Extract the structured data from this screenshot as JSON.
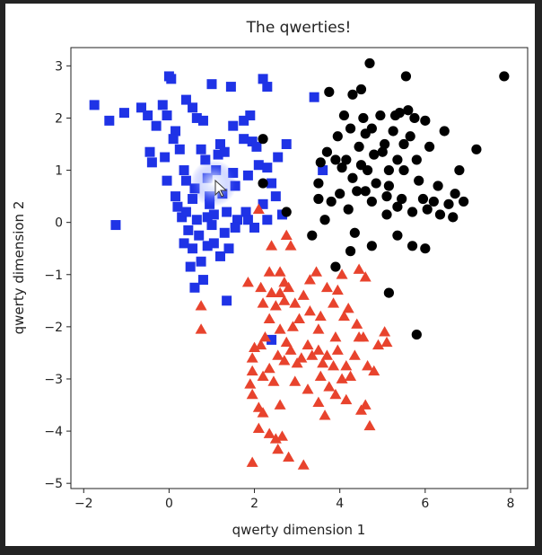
{
  "chart_data": {
    "type": "scatter",
    "title": "The qwerties!",
    "xlabel": "qwerty dimension 1",
    "ylabel": "qwerty dimension 2",
    "xlim": [
      -2.3,
      8.4
    ],
    "ylim": [
      -5.1,
      3.35
    ],
    "xticks": [
      -2,
      0,
      2,
      4,
      6,
      8
    ],
    "yticks": [
      3,
      2,
      1,
      0,
      -1,
      -2,
      -3,
      -4,
      -5
    ],
    "xtick_labels": [
      "−2",
      "0",
      "2",
      "4",
      "6",
      "8"
    ],
    "ytick_labels": [
      "3",
      "2",
      "1",
      "0",
      "−1",
      "−2",
      "−3",
      "−4",
      "−5"
    ],
    "grid": false,
    "series": [
      {
        "marker": "square",
        "color": "#1f33e6",
        "points": [
          [
            -1.75,
            2.25
          ],
          [
            -1.4,
            1.95
          ],
          [
            -1.05,
            2.1
          ],
          [
            -1.25,
            -0.05
          ],
          [
            -0.65,
            2.2
          ],
          [
            -0.5,
            2.05
          ],
          [
            -0.45,
            1.35
          ],
          [
            -0.4,
            1.15
          ],
          [
            -0.3,
            1.85
          ],
          [
            -0.15,
            2.25
          ],
          [
            -0.05,
            2.05
          ],
          [
            0.0,
            2.8
          ],
          [
            0.05,
            2.75
          ],
          [
            0.15,
            1.75
          ],
          [
            0.1,
            1.6
          ],
          [
            -0.1,
            1.25
          ],
          [
            -0.05,
            0.8
          ],
          [
            0.15,
            0.5
          ],
          [
            0.2,
            0.3
          ],
          [
            0.3,
            0.1
          ],
          [
            0.25,
            1.4
          ],
          [
            0.35,
            1.0
          ],
          [
            0.4,
            0.8
          ],
          [
            0.4,
            0.2
          ],
          [
            0.45,
            -0.15
          ],
          [
            0.35,
            -0.4
          ],
          [
            0.55,
            0.45
          ],
          [
            0.6,
            0.65
          ],
          [
            0.65,
            0.05
          ],
          [
            0.55,
            -0.5
          ],
          [
            0.5,
            -0.85
          ],
          [
            0.7,
            -0.25
          ],
          [
            0.75,
            -0.75
          ],
          [
            0.8,
            -1.1
          ],
          [
            0.6,
            -1.25
          ],
          [
            0.4,
            2.35
          ],
          [
            0.55,
            2.2
          ],
          [
            0.65,
            2.0
          ],
          [
            0.8,
            1.95
          ],
          [
            0.75,
            1.4
          ],
          [
            0.85,
            1.2
          ],
          [
            0.9,
            0.85
          ],
          [
            0.95,
            0.5
          ],
          [
            0.95,
            0.35
          ],
          [
            0.9,
            0.1
          ],
          [
            1.0,
            -0.05
          ],
          [
            1.05,
            0.15
          ],
          [
            1.1,
            1.0
          ],
          [
            1.15,
            1.3
          ],
          [
            1.2,
            1.5
          ],
          [
            1.3,
            1.35
          ],
          [
            1.25,
            0.55
          ],
          [
            1.35,
            0.2
          ],
          [
            1.3,
            -0.2
          ],
          [
            1.4,
            -0.5
          ],
          [
            1.2,
            -0.65
          ],
          [
            1.05,
            -0.4
          ],
          [
            0.9,
            -0.45
          ],
          [
            1.0,
            2.65
          ],
          [
            1.45,
            2.6
          ],
          [
            1.5,
            1.85
          ],
          [
            1.5,
            0.95
          ],
          [
            1.55,
            0.7
          ],
          [
            1.6,
            0.05
          ],
          [
            1.55,
            -0.1
          ],
          [
            1.35,
            -1.5
          ],
          [
            1.75,
            1.95
          ],
          [
            1.9,
            2.05
          ],
          [
            1.75,
            1.6
          ],
          [
            1.95,
            1.55
          ],
          [
            1.85,
            0.9
          ],
          [
            1.8,
            0.2
          ],
          [
            1.85,
            0.05
          ],
          [
            2.0,
            -0.1
          ],
          [
            2.05,
            1.45
          ],
          [
            2.2,
            2.75
          ],
          [
            2.3,
            2.6
          ],
          [
            2.1,
            1.1
          ],
          [
            2.3,
            1.05
          ],
          [
            2.2,
            0.35
          ],
          [
            2.3,
            0.05
          ],
          [
            2.4,
            0.75
          ],
          [
            2.5,
            0.5
          ],
          [
            2.55,
            1.25
          ],
          [
            2.75,
            1.5
          ],
          [
            2.65,
            0.15
          ],
          [
            3.4,
            2.4
          ],
          [
            3.6,
            1.0
          ],
          [
            2.4,
            -2.25
          ]
        ]
      },
      {
        "marker": "circle",
        "color": "#000000",
        "points": [
          [
            2.2,
            1.6
          ],
          [
            2.2,
            0.75
          ],
          [
            2.75,
            0.2
          ],
          [
            3.35,
            -0.25
          ],
          [
            3.5,
            0.45
          ],
          [
            3.55,
            1.15
          ],
          [
            3.5,
            0.75
          ],
          [
            3.7,
            1.35
          ],
          [
            3.75,
            2.5
          ],
          [
            3.8,
            0.4
          ],
          [
            3.65,
            0.05
          ],
          [
            3.9,
            1.2
          ],
          [
            3.95,
            1.65
          ],
          [
            4.05,
            1.05
          ],
          [
            4.0,
            0.55
          ],
          [
            4.1,
            2.05
          ],
          [
            4.25,
            1.8
          ],
          [
            4.3,
            0.85
          ],
          [
            4.2,
            0.25
          ],
          [
            4.35,
            -0.2
          ],
          [
            4.4,
            0.6
          ],
          [
            4.45,
            1.45
          ],
          [
            4.5,
            2.55
          ],
          [
            4.3,
            2.45
          ],
          [
            4.55,
            2.0
          ],
          [
            4.6,
            1.7
          ],
          [
            4.65,
            1.0
          ],
          [
            4.6,
            0.6
          ],
          [
            4.7,
            3.05
          ],
          [
            4.75,
            1.8
          ],
          [
            4.75,
            0.4
          ],
          [
            4.85,
            0.75
          ],
          [
            4.8,
            1.3
          ],
          [
            4.95,
            2.05
          ],
          [
            5.05,
            1.5
          ],
          [
            5.1,
            0.5
          ],
          [
            5.15,
            1.0
          ],
          [
            5.1,
            0.15
          ],
          [
            5.25,
            1.75
          ],
          [
            5.3,
            2.05
          ],
          [
            5.35,
            1.2
          ],
          [
            5.35,
            0.3
          ],
          [
            5.45,
            0.45
          ],
          [
            5.5,
            1.5
          ],
          [
            5.5,
            1.0
          ],
          [
            5.55,
            2.8
          ],
          [
            5.6,
            2.15
          ],
          [
            5.65,
            1.65
          ],
          [
            5.7,
            0.2
          ],
          [
            5.75,
            2.0
          ],
          [
            5.8,
            1.2
          ],
          [
            5.85,
            0.8
          ],
          [
            5.95,
            0.45
          ],
          [
            6.0,
            1.95
          ],
          [
            6.05,
            0.25
          ],
          [
            6.1,
            1.45
          ],
          [
            6.2,
            0.4
          ],
          [
            6.3,
            0.7
          ],
          [
            6.35,
            0.15
          ],
          [
            6.45,
            1.75
          ],
          [
            6.55,
            0.35
          ],
          [
            6.65,
            0.1
          ],
          [
            6.7,
            0.55
          ],
          [
            6.8,
            1.0
          ],
          [
            5.7,
            -0.45
          ],
          [
            5.35,
            -0.25
          ],
          [
            6.0,
            -0.5
          ],
          [
            4.25,
            -0.55
          ],
          [
            4.75,
            -0.45
          ],
          [
            3.9,
            -0.85
          ],
          [
            5.15,
            -1.35
          ],
          [
            5.8,
            -2.15
          ],
          [
            6.9,
            0.4
          ],
          [
            7.2,
            1.4
          ],
          [
            7.85,
            2.8
          ],
          [
            5.4,
            2.1
          ],
          [
            5.0,
            1.35
          ],
          [
            4.5,
            1.1
          ],
          [
            4.15,
            1.2
          ],
          [
            5.15,
            0.7
          ]
        ]
      },
      {
        "marker": "triangle",
        "color": "#e8432d",
        "points": [
          [
            2.1,
            0.25
          ],
          [
            2.75,
            -0.25
          ],
          [
            2.85,
            -0.45
          ],
          [
            2.4,
            -0.45
          ],
          [
            1.85,
            -1.15
          ],
          [
            2.35,
            -0.95
          ],
          [
            2.6,
            -0.95
          ],
          [
            2.15,
            -1.25
          ],
          [
            2.4,
            -1.35
          ],
          [
            2.6,
            -1.35
          ],
          [
            2.8,
            -1.25
          ],
          [
            2.7,
            -1.15
          ],
          [
            2.2,
            -1.55
          ],
          [
            2.5,
            -1.6
          ],
          [
            2.7,
            -1.5
          ],
          [
            2.95,
            -1.55
          ],
          [
            3.15,
            -1.4
          ],
          [
            3.45,
            -0.95
          ],
          [
            3.7,
            -1.25
          ],
          [
            3.95,
            -1.3
          ],
          [
            4.05,
            -1.0
          ],
          [
            4.45,
            -0.9
          ],
          [
            4.6,
            -1.05
          ],
          [
            4.2,
            -1.65
          ],
          [
            4.1,
            -1.8
          ],
          [
            3.9,
            -2.2
          ],
          [
            3.55,
            -1.8
          ],
          [
            3.3,
            -1.7
          ],
          [
            3.05,
            -1.85
          ],
          [
            2.9,
            -2.0
          ],
          [
            2.6,
            -2.05
          ],
          [
            2.35,
            -1.85
          ],
          [
            2.25,
            -2.2
          ],
          [
            2.15,
            -2.35
          ],
          [
            2.0,
            -2.4
          ],
          [
            1.95,
            -2.6
          ],
          [
            1.95,
            -2.85
          ],
          [
            1.9,
            -3.1
          ],
          [
            1.95,
            -3.3
          ],
          [
            2.1,
            -3.55
          ],
          [
            2.2,
            -2.95
          ],
          [
            2.35,
            -2.8
          ],
          [
            2.45,
            -3.05
          ],
          [
            2.55,
            -2.55
          ],
          [
            2.7,
            -2.65
          ],
          [
            2.85,
            -2.45
          ],
          [
            3.0,
            -2.7
          ],
          [
            3.1,
            -2.6
          ],
          [
            3.25,
            -2.35
          ],
          [
            3.35,
            -2.55
          ],
          [
            3.5,
            -2.45
          ],
          [
            3.6,
            -2.7
          ],
          [
            3.7,
            -2.55
          ],
          [
            3.85,
            -2.75
          ],
          [
            3.95,
            -2.45
          ],
          [
            4.05,
            -3.0
          ],
          [
            4.15,
            -2.75
          ],
          [
            4.25,
            -2.95
          ],
          [
            4.35,
            -2.55
          ],
          [
            4.45,
            -2.2
          ],
          [
            4.55,
            -2.2
          ],
          [
            4.65,
            -2.75
          ],
          [
            4.8,
            -2.85
          ],
          [
            4.9,
            -2.35
          ],
          [
            5.05,
            -2.1
          ],
          [
            5.1,
            -2.3
          ],
          [
            3.55,
            -2.95
          ],
          [
            3.75,
            -3.15
          ],
          [
            3.5,
            -3.45
          ],
          [
            3.65,
            -3.7
          ],
          [
            3.9,
            -3.3
          ],
          [
            4.15,
            -3.4
          ],
          [
            4.5,
            -3.6
          ],
          [
            4.6,
            -3.5
          ],
          [
            4.7,
            -3.9
          ],
          [
            2.2,
            -3.65
          ],
          [
            2.1,
            -3.95
          ],
          [
            2.35,
            -4.05
          ],
          [
            2.5,
            -4.15
          ],
          [
            2.55,
            -4.35
          ],
          [
            2.65,
            -4.1
          ],
          [
            2.8,
            -4.5
          ],
          [
            1.95,
            -4.6
          ],
          [
            3.15,
            -4.65
          ],
          [
            0.75,
            -1.6
          ],
          [
            0.75,
            -2.05
          ],
          [
            2.6,
            -3.5
          ],
          [
            2.95,
            -3.05
          ],
          [
            3.25,
            -3.2
          ],
          [
            4.4,
            -1.95
          ],
          [
            3.85,
            -1.55
          ],
          [
            3.3,
            -1.1
          ],
          [
            3.5,
            -2.05
          ],
          [
            2.75,
            -2.3
          ]
        ]
      }
    ]
  }
}
